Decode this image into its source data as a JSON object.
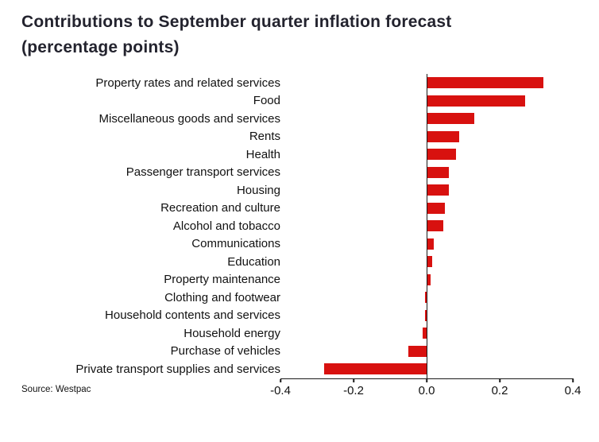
{
  "title_line1": "Contributions to September quarter inflation forecast",
  "title_line2": "(percentage points)",
  "source": "Source: Westpac",
  "colors": {
    "bar": "#d8110f",
    "title": "#23232e",
    "text": "#111111",
    "axis": "#1a1a1a"
  },
  "chart_data": {
    "type": "bar",
    "orientation": "horizontal",
    "title": "Contributions to September quarter inflation forecast (percentage points)",
    "xlabel": "",
    "ylabel": "",
    "xlim": [
      -0.4,
      0.4
    ],
    "grid": false,
    "legend": false,
    "categories": [
      "Property rates and related services",
      "Food",
      "Miscellaneous goods and services",
      "Rents",
      "Health",
      "Passenger transport services",
      "Housing",
      "Recreation and culture",
      "Alcohol and tobacco",
      "Communications",
      "Education",
      "Property maintenance",
      "Clothing and footwear",
      "Household contents and services",
      "Household energy",
      "Purchase of vehicles",
      "Private transport supplies and services"
    ],
    "values": [
      0.32,
      0.27,
      0.13,
      0.09,
      0.08,
      0.06,
      0.06,
      0.05,
      0.045,
      0.02,
      0.015,
      0.01,
      -0.005,
      -0.005,
      -0.01,
      -0.05,
      -0.28
    ],
    "xticks": [
      -0.4,
      -0.2,
      0.0,
      0.2,
      0.4
    ],
    "xtick_labels": [
      "-0.4",
      "-0.2",
      "0.0",
      "0.2",
      "0.4"
    ],
    "source": "Source: Westpac"
  }
}
